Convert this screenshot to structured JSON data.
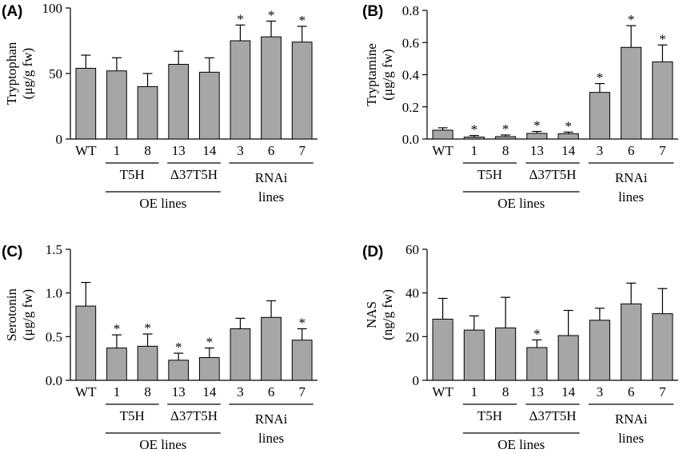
{
  "chart_data": [
    {
      "panel_label": "(A)",
      "type": "bar",
      "ylabel": "Tryptophan",
      "yunit": "(μg/g fw)",
      "ylim": [
        0,
        100
      ],
      "yticks": [
        "0",
        "50",
        "100"
      ],
      "categories": [
        "WT",
        "1",
        "8",
        "13",
        "14",
        "3",
        "6",
        "7"
      ],
      "values": [
        54,
        52,
        40,
        57,
        51,
        75,
        78,
        74
      ],
      "errors": [
        10,
        10,
        10,
        10,
        11,
        12,
        12,
        12
      ],
      "significance": [
        "",
        "",
        "",
        "",
        "",
        "*",
        "*",
        "*"
      ],
      "groups": {
        "t5h": "T5H",
        "delta": "Δ37T5H",
        "oe": "OE lines",
        "rnai_1": "RNAi",
        "rnai_2": "lines"
      }
    },
    {
      "panel_label": "(B)",
      "type": "bar",
      "ylabel": "Tryptamine",
      "yunit": "(μg/g fw)",
      "ylim": [
        0,
        0.8
      ],
      "yticks": [
        "0.0",
        "0.2",
        "0.4",
        "0.6",
        "0.8"
      ],
      "categories": [
        "WT",
        "1",
        "8",
        "13",
        "14",
        "3",
        "6",
        "7"
      ],
      "values": [
        0.055,
        0.012,
        0.015,
        0.035,
        0.033,
        0.29,
        0.57,
        0.48
      ],
      "errors": [
        0.015,
        0.01,
        0.01,
        0.012,
        0.01,
        0.055,
        0.135,
        0.105
      ],
      "significance": [
        "",
        "*",
        "*",
        "*",
        "*",
        "*",
        "*",
        "*"
      ],
      "groups": {
        "t5h": "T5H",
        "delta": "Δ37T5H",
        "oe": "OE lines",
        "rnai_1": "RNAi",
        "rnai_2": "lines"
      }
    },
    {
      "panel_label": "(C)",
      "type": "bar",
      "ylabel": "Serotonin",
      "yunit": "(μg/g fw)",
      "ylim": [
        0,
        1.5
      ],
      "yticks": [
        "0.0",
        "0.5",
        "1.0",
        "1.5"
      ],
      "categories": [
        "WT",
        "1",
        "8",
        "13",
        "14",
        "3",
        "6",
        "7"
      ],
      "values": [
        0.85,
        0.37,
        0.39,
        0.23,
        0.26,
        0.59,
        0.72,
        0.46
      ],
      "errors": [
        0.27,
        0.15,
        0.14,
        0.08,
        0.11,
        0.12,
        0.19,
        0.13
      ],
      "significance": [
        "",
        "*",
        "*",
        "*",
        "*",
        "",
        "",
        "*"
      ],
      "groups": {
        "t5h": "T5H",
        "delta": "Δ37T5H",
        "oe": "OE lines",
        "rnai_1": "RNAi",
        "rnai_2": "lines"
      }
    },
    {
      "panel_label": "(D)",
      "type": "bar",
      "ylabel": "NAS",
      "yunit": "(ng/g fw)",
      "ylim": [
        0,
        60
      ],
      "yticks": [
        "0",
        "20",
        "40",
        "60"
      ],
      "categories": [
        "WT",
        "1",
        "8",
        "13",
        "14",
        "3",
        "6",
        "7"
      ],
      "values": [
        28,
        23,
        24,
        15,
        20.5,
        27.5,
        35,
        30.5
      ],
      "errors": [
        9.5,
        6.5,
        14,
        3.5,
        11.5,
        5.5,
        9.5,
        11.5
      ],
      "significance": [
        "",
        "",
        "",
        "*",
        "",
        "",
        "",
        ""
      ],
      "groups": {
        "t5h": "T5H",
        "delta": "Δ37T5H",
        "oe": "OE lines",
        "rnai_1": "RNAi",
        "rnai_2": "lines"
      }
    }
  ],
  "colors": {
    "bar_fill": "#a6a6a6",
    "ink": "#000000"
  }
}
